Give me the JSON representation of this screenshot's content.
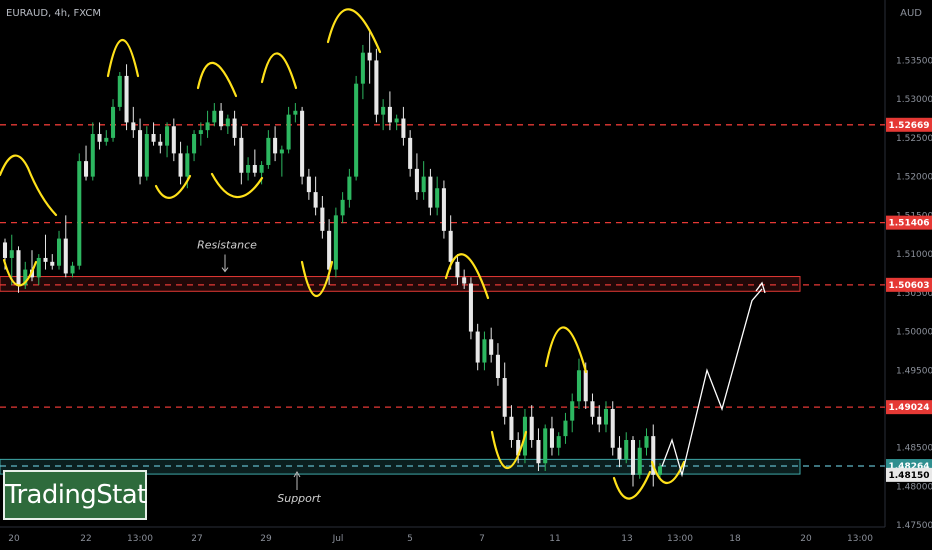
{
  "header": {
    "symbol": "EURAUD, 4h, FXCM",
    "currency": "AUD"
  },
  "logo": {
    "text": "TradingStat"
  },
  "annotations": {
    "resistance": "Resistance",
    "support": "Support"
  },
  "colors": {
    "up": "#2db760",
    "down": "#e8e8e8",
    "dashed": "#e53935",
    "zigzag": "#ffe11a",
    "supportZone": "#3fa8a8",
    "resistanceZone": "#e53935",
    "projection": "#ffffff"
  },
  "chart_data": {
    "type": "candlestick",
    "symbol": "EURAUD",
    "timeframe": "4h",
    "source": "FXCM",
    "ylim": [
      1.4718,
      1.5428
    ],
    "y_ticks": [
      "1.53500",
      "1.53000",
      "1.52500",
      "1.52000",
      "1.51500",
      "1.51000",
      "1.50500",
      "1.50000",
      "1.49500",
      "1.48500",
      "1.48000",
      "1.47500"
    ],
    "x_ticks": [
      "20",
      "22",
      "13:00",
      "27",
      "29",
      "Jul",
      "5",
      "7",
      "11",
      "13",
      "13:00",
      "18",
      "20",
      "13:00"
    ],
    "price_labels": [
      {
        "value": 1.52669,
        "text": "1.52669",
        "style": "red"
      },
      {
        "value": 1.51406,
        "text": "1.51406",
        "style": "red"
      },
      {
        "value": 1.50603,
        "text": "1.50603",
        "style": "red"
      },
      {
        "value": 1.49024,
        "text": "1.49024",
        "style": "red"
      },
      {
        "value": 1.48264,
        "text": "1.48264",
        "style": "teal"
      },
      {
        "value": 1.4815,
        "text": "1.48150",
        "style": "white"
      }
    ],
    "horizontal_levels": [
      1.52669,
      1.51406,
      1.50603,
      1.49024,
      1.48264
    ],
    "resistance_zone": [
      1.5052,
      1.5071
    ],
    "support_zone": [
      1.4816,
      1.4835
    ],
    "candles": [
      [
        1.5115,
        1.512,
        1.508,
        1.5095
      ],
      [
        1.5095,
        1.5125,
        1.506,
        1.5105
      ],
      [
        1.5105,
        1.511,
        1.505,
        1.506
      ],
      [
        1.506,
        1.509,
        1.5055,
        1.508
      ],
      [
        1.508,
        1.5105,
        1.5065,
        1.507
      ],
      [
        1.507,
        1.51,
        1.506,
        1.5095
      ],
      [
        1.5095,
        1.5125,
        1.508,
        1.509
      ],
      [
        1.509,
        1.51,
        1.508,
        1.5085
      ],
      [
        1.5085,
        1.513,
        1.508,
        1.512
      ],
      [
        1.512,
        1.515,
        1.507,
        1.5075
      ],
      [
        1.5075,
        1.509,
        1.507,
        1.5085
      ],
      [
        1.5085,
        1.523,
        1.508,
        1.522
      ],
      [
        1.522,
        1.524,
        1.5195,
        1.52
      ],
      [
        1.52,
        1.527,
        1.5195,
        1.5255
      ],
      [
        1.5255,
        1.527,
        1.5235,
        1.5245
      ],
      [
        1.5245,
        1.526,
        1.524,
        1.525
      ],
      [
        1.525,
        1.53,
        1.5245,
        1.529
      ],
      [
        1.529,
        1.5335,
        1.5285,
        1.533
      ],
      [
        1.533,
        1.5345,
        1.526,
        1.527
      ],
      [
        1.527,
        1.529,
        1.525,
        1.526
      ],
      [
        1.526,
        1.5275,
        1.519,
        1.52
      ],
      [
        1.52,
        1.5265,
        1.5195,
        1.5255
      ],
      [
        1.5255,
        1.527,
        1.524,
        1.5245
      ],
      [
        1.5245,
        1.5255,
        1.523,
        1.524
      ],
      [
        1.524,
        1.527,
        1.5225,
        1.5265
      ],
      [
        1.5265,
        1.5275,
        1.522,
        1.523
      ],
      [
        1.523,
        1.5245,
        1.519,
        1.52
      ],
      [
        1.52,
        1.524,
        1.5185,
        1.523
      ],
      [
        1.523,
        1.526,
        1.522,
        1.5255
      ],
      [
        1.5255,
        1.527,
        1.524,
        1.526
      ],
      [
        1.526,
        1.5285,
        1.525,
        1.527
      ],
      [
        1.527,
        1.5295,
        1.5265,
        1.5285
      ],
      [
        1.5285,
        1.5295,
        1.526,
        1.5265
      ],
      [
        1.5265,
        1.528,
        1.5255,
        1.5275
      ],
      [
        1.5275,
        1.5285,
        1.524,
        1.525
      ],
      [
        1.525,
        1.5265,
        1.519,
        1.5205
      ],
      [
        1.5205,
        1.5225,
        1.5195,
        1.5215
      ],
      [
        1.5215,
        1.5235,
        1.52,
        1.5205
      ],
      [
        1.5205,
        1.522,
        1.519,
        1.5215
      ],
      [
        1.5215,
        1.526,
        1.521,
        1.525
      ],
      [
        1.525,
        1.5265,
        1.522,
        1.523
      ],
      [
        1.523,
        1.524,
        1.52,
        1.5235
      ],
      [
        1.5235,
        1.529,
        1.523,
        1.528
      ],
      [
        1.528,
        1.5295,
        1.527,
        1.5285
      ],
      [
        1.5285,
        1.529,
        1.519,
        1.52
      ],
      [
        1.52,
        1.521,
        1.517,
        1.518
      ],
      [
        1.518,
        1.52,
        1.515,
        1.516
      ],
      [
        1.516,
        1.5175,
        1.512,
        1.513
      ],
      [
        1.513,
        1.5145,
        1.506,
        1.508
      ],
      [
        1.508,
        1.516,
        1.507,
        1.515
      ],
      [
        1.515,
        1.518,
        1.514,
        1.517
      ],
      [
        1.517,
        1.521,
        1.516,
        1.52
      ],
      [
        1.52,
        1.533,
        1.5195,
        1.532
      ],
      [
        1.532,
        1.537,
        1.53,
        1.536
      ],
      [
        1.536,
        1.539,
        1.532,
        1.535
      ],
      [
        1.535,
        1.5365,
        1.527,
        1.528
      ],
      [
        1.528,
        1.53,
        1.526,
        1.529
      ],
      [
        1.529,
        1.531,
        1.526,
        1.527
      ],
      [
        1.527,
        1.528,
        1.526,
        1.5275
      ],
      [
        1.5275,
        1.529,
        1.524,
        1.525
      ],
      [
        1.525,
        1.526,
        1.52,
        1.521
      ],
      [
        1.521,
        1.523,
        1.517,
        1.518
      ],
      [
        1.518,
        1.522,
        1.517,
        1.52
      ],
      [
        1.52,
        1.521,
        1.515,
        1.516
      ],
      [
        1.516,
        1.52,
        1.515,
        1.5185
      ],
      [
        1.5185,
        1.5195,
        1.512,
        1.513
      ],
      [
        1.513,
        1.515,
        1.508,
        1.509
      ],
      [
        1.509,
        1.51,
        1.506,
        1.507
      ],
      [
        1.507,
        1.508,
        1.5055,
        1.5062
      ],
      [
        1.5062,
        1.507,
        1.499,
        1.5
      ],
      [
        1.5,
        1.501,
        1.495,
        1.496
      ],
      [
        1.496,
        1.5,
        1.495,
        1.499
      ],
      [
        1.499,
        1.5005,
        1.496,
        1.497
      ],
      [
        1.497,
        1.4985,
        1.493,
        1.494
      ],
      [
        1.494,
        1.496,
        1.488,
        1.489
      ],
      [
        1.489,
        1.4905,
        1.485,
        1.486
      ],
      [
        1.486,
        1.487,
        1.483,
        1.484
      ],
      [
        1.484,
        1.49,
        1.483,
        1.489
      ],
      [
        1.489,
        1.4905,
        1.485,
        1.486
      ],
      [
        1.486,
        1.4875,
        1.482,
        1.483
      ],
      [
        1.483,
        1.488,
        1.482,
        1.4875
      ],
      [
        1.4875,
        1.489,
        1.484,
        1.485
      ],
      [
        1.485,
        1.487,
        1.484,
        1.4865
      ],
      [
        1.4865,
        1.4895,
        1.4855,
        1.4885
      ],
      [
        1.4885,
        1.492,
        1.487,
        1.491
      ],
      [
        1.491,
        1.4965,
        1.49,
        1.495
      ],
      [
        1.495,
        1.496,
        1.49,
        1.491
      ],
      [
        1.491,
        1.492,
        1.488,
        1.489
      ],
      [
        1.489,
        1.4905,
        1.487,
        1.488
      ],
      [
        1.488,
        1.491,
        1.487,
        1.49
      ],
      [
        1.49,
        1.491,
        1.484,
        1.485
      ],
      [
        1.485,
        1.4865,
        1.4825,
        1.4835
      ],
      [
        1.4835,
        1.487,
        1.483,
        1.486
      ],
      [
        1.486,
        1.4865,
        1.48,
        1.4815
      ],
      [
        1.4815,
        1.486,
        1.481,
        1.485
      ],
      [
        1.485,
        1.4875,
        1.484,
        1.4865
      ],
      [
        1.4865,
        1.488,
        1.48,
        1.4815
      ],
      [
        1.4815,
        1.483,
        1.481,
        1.4826
      ]
    ],
    "projection_path": [
      [
        1.4826,
        0
      ],
      [
        1.486,
        2
      ],
      [
        1.4815,
        4
      ],
      [
        1.495,
        9
      ],
      [
        1.49,
        12
      ],
      [
        1.504,
        18
      ],
      [
        1.5055,
        20
      ]
    ]
  }
}
